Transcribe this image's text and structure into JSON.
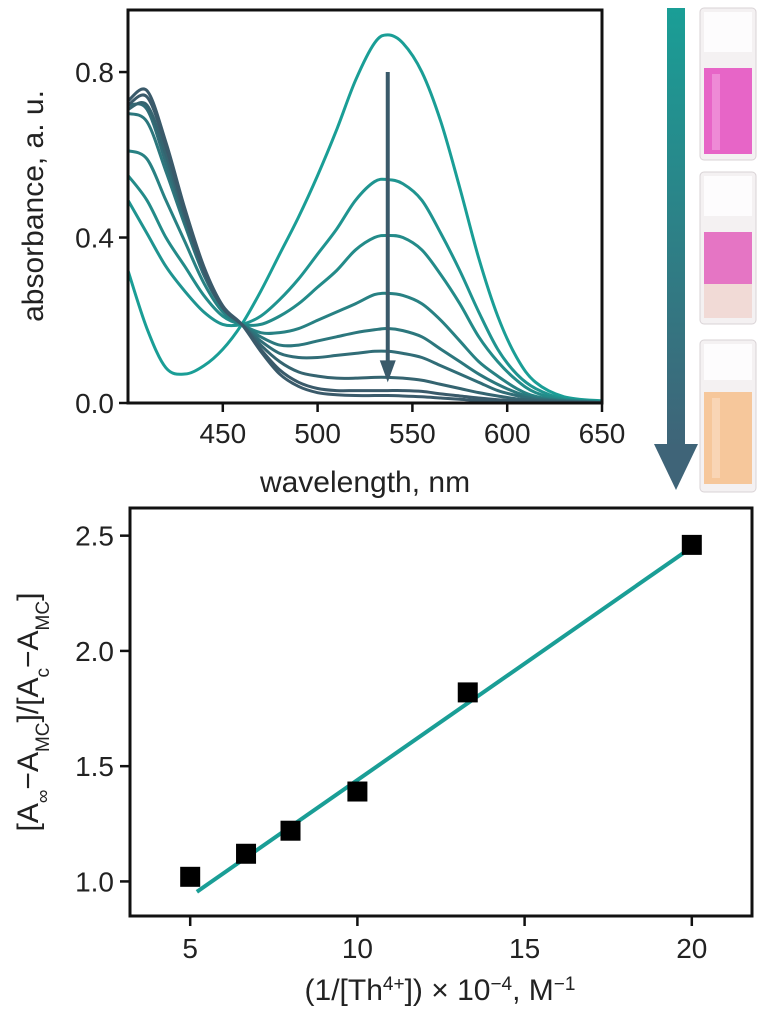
{
  "colors": {
    "teal": "#1a9e96",
    "dark": "#3a5a6a",
    "axis": "#111111",
    "marker": "#000000",
    "arrow_top": "#1a9e96",
    "arrow_bottom": "#3f6478"
  },
  "chart_data": [
    {
      "type": "line",
      "xlabel": "wavelength, nm",
      "ylabel": "absorbance, a. u.",
      "xlim": [
        400,
        650
      ],
      "ylim": [
        0,
        0.95
      ],
      "xticks": [
        450,
        500,
        550,
        600,
        650
      ],
      "yticks": [
        0.0,
        0.4,
        0.8
      ],
      "ytick_labels": [
        "0.0",
        "0.4",
        "0.8"
      ],
      "grid": false,
      "annotations": [
        "downward arrow at 537 nm from 0.80 to 0.05 indicating decreasing absorbance"
      ],
      "series": [
        {
          "values": [
            [
              400,
              0.32
            ],
            [
              410,
              0.18
            ],
            [
              420,
              0.085
            ],
            [
              430,
              0.07
            ],
            [
              440,
              0.09
            ],
            [
              450,
              0.13
            ],
            [
              460,
              0.19
            ],
            [
              470,
              0.27
            ],
            [
              480,
              0.36
            ],
            [
              490,
              0.45
            ],
            [
              500,
              0.55
            ],
            [
              510,
              0.66
            ],
            [
              520,
              0.78
            ],
            [
              530,
              0.87
            ],
            [
              537,
              0.89
            ],
            [
              545,
              0.87
            ],
            [
              555,
              0.8
            ],
            [
              565,
              0.68
            ],
            [
              575,
              0.52
            ],
            [
              585,
              0.35
            ],
            [
              595,
              0.21
            ],
            [
              605,
              0.11
            ],
            [
              615,
              0.05
            ],
            [
              630,
              0.015
            ],
            [
              650,
              0.005
            ]
          ]
        },
        {
          "values": [
            [
              400,
              0.49
            ],
            [
              410,
              0.41
            ],
            [
              420,
              0.33
            ],
            [
              430,
              0.27
            ],
            [
              440,
              0.22
            ],
            [
              450,
              0.19
            ],
            [
              460,
              0.19
            ],
            [
              470,
              0.21
            ],
            [
              480,
              0.25
            ],
            [
              490,
              0.3
            ],
            [
              500,
              0.36
            ],
            [
              510,
              0.42
            ],
            [
              520,
              0.49
            ],
            [
              530,
              0.535
            ],
            [
              537,
              0.54
            ],
            [
              545,
              0.53
            ],
            [
              555,
              0.49
            ],
            [
              565,
              0.41
            ],
            [
              575,
              0.32
            ],
            [
              585,
              0.22
            ],
            [
              595,
              0.13
            ],
            [
              605,
              0.07
            ],
            [
              615,
              0.035
            ],
            [
              630,
              0.01
            ],
            [
              650,
              0.004
            ]
          ]
        },
        {
          "values": [
            [
              400,
              0.55
            ],
            [
              410,
              0.49
            ],
            [
              420,
              0.4
            ],
            [
              430,
              0.33
            ],
            [
              440,
              0.26
            ],
            [
              450,
              0.21
            ],
            [
              460,
              0.19
            ],
            [
              470,
              0.19
            ],
            [
              480,
              0.21
            ],
            [
              490,
              0.24
            ],
            [
              500,
              0.28
            ],
            [
              510,
              0.32
            ],
            [
              520,
              0.37
            ],
            [
              530,
              0.4
            ],
            [
              537,
              0.405
            ],
            [
              545,
              0.4
            ],
            [
              555,
              0.37
            ],
            [
              565,
              0.31
            ],
            [
              575,
              0.24
            ],
            [
              585,
              0.16
            ],
            [
              595,
              0.1
            ],
            [
              605,
              0.055
            ],
            [
              615,
              0.025
            ],
            [
              630,
              0.008
            ],
            [
              650,
              0.003
            ]
          ]
        },
        {
          "values": [
            [
              400,
              0.61
            ],
            [
              410,
              0.59
            ],
            [
              420,
              0.49
            ],
            [
              430,
              0.39
            ],
            [
              440,
              0.29
            ],
            [
              450,
              0.22
            ],
            [
              460,
              0.19
            ],
            [
              470,
              0.17
            ],
            [
              480,
              0.17
            ],
            [
              490,
              0.18
            ],
            [
              500,
              0.2
            ],
            [
              510,
              0.22
            ],
            [
              520,
              0.24
            ],
            [
              530,
              0.262
            ],
            [
              537,
              0.265
            ],
            [
              545,
              0.26
            ],
            [
              555,
              0.24
            ],
            [
              565,
              0.2
            ],
            [
              575,
              0.15
            ],
            [
              585,
              0.1
            ],
            [
              595,
              0.065
            ],
            [
              605,
              0.035
            ],
            [
              615,
              0.016
            ],
            [
              630,
              0.006
            ],
            [
              650,
              0.002
            ]
          ]
        },
        {
          "values": [
            [
              400,
              0.7
            ],
            [
              410,
              0.68
            ],
            [
              420,
              0.56
            ],
            [
              430,
              0.43
            ],
            [
              440,
              0.31
            ],
            [
              450,
              0.23
            ],
            [
              460,
              0.19
            ],
            [
              470,
              0.16
            ],
            [
              480,
              0.14
            ],
            [
              490,
              0.14
            ],
            [
              500,
              0.15
            ],
            [
              510,
              0.16
            ],
            [
              520,
              0.17
            ],
            [
              530,
              0.177
            ],
            [
              537,
              0.18
            ],
            [
              545,
              0.175
            ],
            [
              555,
              0.16
            ],
            [
              565,
              0.13
            ],
            [
              575,
              0.1
            ],
            [
              585,
              0.07
            ],
            [
              595,
              0.045
            ],
            [
              605,
              0.025
            ],
            [
              615,
              0.012
            ],
            [
              630,
              0.005
            ],
            [
              650,
              0.002
            ]
          ]
        },
        {
          "values": [
            [
              400,
              0.72
            ],
            [
              410,
              0.71
            ],
            [
              420,
              0.58
            ],
            [
              430,
              0.44
            ],
            [
              440,
              0.31
            ],
            [
              450,
              0.23
            ],
            [
              460,
              0.19
            ],
            [
              470,
              0.15
            ],
            [
              480,
              0.12
            ],
            [
              490,
              0.11
            ],
            [
              500,
              0.11
            ],
            [
              510,
              0.115
            ],
            [
              520,
              0.12
            ],
            [
              530,
              0.125
            ],
            [
              537,
              0.125
            ],
            [
              545,
              0.12
            ],
            [
              555,
              0.11
            ],
            [
              565,
              0.09
            ],
            [
              575,
              0.07
            ],
            [
              585,
              0.05
            ],
            [
              595,
              0.03
            ],
            [
              605,
              0.018
            ],
            [
              615,
              0.009
            ],
            [
              630,
              0.004
            ],
            [
              650,
              0.001
            ]
          ]
        },
        {
          "values": [
            [
              400,
              0.71
            ],
            [
              410,
              0.72
            ],
            [
              420,
              0.6
            ],
            [
              430,
              0.45
            ],
            [
              440,
              0.32
            ],
            [
              450,
              0.23
            ],
            [
              460,
              0.19
            ],
            [
              470,
              0.14
            ],
            [
              480,
              0.1
            ],
            [
              490,
              0.075
            ],
            [
              500,
              0.065
            ],
            [
              510,
              0.06
            ],
            [
              520,
              0.06
            ],
            [
              530,
              0.062
            ],
            [
              537,
              0.062
            ],
            [
              545,
              0.06
            ],
            [
              555,
              0.055
            ],
            [
              565,
              0.045
            ],
            [
              575,
              0.035
            ],
            [
              585,
              0.025
            ],
            [
              595,
              0.017
            ],
            [
              605,
              0.01
            ],
            [
              615,
              0.006
            ],
            [
              630,
              0.003
            ],
            [
              650,
              0.001
            ]
          ]
        },
        {
          "values": [
            [
              400,
              0.72
            ],
            [
              410,
              0.74
            ],
            [
              420,
              0.62
            ],
            [
              430,
              0.46
            ],
            [
              440,
              0.32
            ],
            [
              450,
              0.23
            ],
            [
              460,
              0.19
            ],
            [
              470,
              0.13
            ],
            [
              480,
              0.08
            ],
            [
              490,
              0.05
            ],
            [
              500,
              0.035
            ],
            [
              510,
              0.03
            ],
            [
              520,
              0.03
            ],
            [
              530,
              0.03
            ],
            [
              537,
              0.03
            ],
            [
              545,
              0.03
            ],
            [
              555,
              0.028
            ],
            [
              565,
              0.022
            ],
            [
              575,
              0.017
            ],
            [
              585,
              0.012
            ],
            [
              595,
              0.008
            ],
            [
              605,
              0.005
            ],
            [
              615,
              0.003
            ],
            [
              630,
              0.002
            ],
            [
              650,
              0.001
            ]
          ]
        },
        {
          "values": [
            [
              400,
              0.73
            ],
            [
              410,
              0.755
            ],
            [
              420,
              0.63
            ],
            [
              430,
              0.47
            ],
            [
              440,
              0.33
            ],
            [
              450,
              0.235
            ],
            [
              460,
              0.19
            ],
            [
              470,
              0.125
            ],
            [
              480,
              0.07
            ],
            [
              490,
              0.04
            ],
            [
              500,
              0.025
            ],
            [
              510,
              0.02
            ],
            [
              520,
              0.018
            ],
            [
              530,
              0.018
            ],
            [
              537,
              0.018
            ],
            [
              545,
              0.017
            ],
            [
              555,
              0.015
            ],
            [
              565,
              0.012
            ],
            [
              575,
              0.009
            ],
            [
              585,
              0.006
            ],
            [
              595,
              0.004
            ],
            [
              605,
              0.003
            ],
            [
              615,
              0.002
            ],
            [
              630,
              0.001
            ],
            [
              650,
              0.0
            ]
          ]
        }
      ]
    },
    {
      "type": "scatter",
      "xlabel_parts": [
        "(1/[Th",
        "4+",
        "]) × 10",
        "−4",
        ", M",
        "−1"
      ],
      "ylabel_parts": [
        "[A",
        "∞",
        "−A",
        "MC",
        "]/[A",
        "c",
        "−A",
        "MC",
        "]"
      ],
      "xlim": [
        3.2,
        21.8
      ],
      "ylim": [
        0.85,
        2.62
      ],
      "xticks": [
        5,
        10,
        15,
        20
      ],
      "xtick_labels": [
        "5",
        "10",
        "15",
        "20"
      ],
      "yticks": [
        1.0,
        1.5,
        2.0,
        2.5
      ],
      "ytick_labels": [
        "1.0",
        "1.5",
        "2.0",
        "2.5"
      ],
      "grid": false,
      "points": [
        {
          "x": 5.0,
          "y": 1.02
        },
        {
          "x": 6.67,
          "y": 1.12
        },
        {
          "x": 8.0,
          "y": 1.22
        },
        {
          "x": 10.0,
          "y": 1.39
        },
        {
          "x": 13.3,
          "y": 1.82
        },
        {
          "x": 20.0,
          "y": 2.46
        }
      ],
      "fit_line": {
        "x": [
          5.2,
          20.0
        ],
        "y": [
          0.955,
          2.45
        ]
      }
    }
  ]
}
